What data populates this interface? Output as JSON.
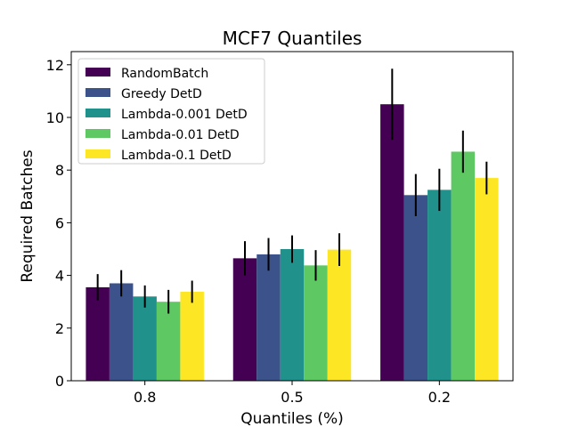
{
  "chart_data": {
    "type": "bar",
    "title": "MCF7 Quantiles",
    "xlabel": "Quantiles (%)",
    "ylabel": "Required Batches",
    "categories": [
      "0.8",
      "0.5",
      "0.2"
    ],
    "ylim": [
      0,
      12.5
    ],
    "yticks": [
      0,
      2,
      4,
      6,
      8,
      10,
      12
    ],
    "grid": false,
    "legend_position": "top-left",
    "series": [
      {
        "name": "RandomBatch",
        "color": "#440154",
        "values": [
          3.55,
          4.65,
          10.5
        ],
        "errors": [
          0.5,
          0.65,
          1.35
        ]
      },
      {
        "name": "Greedy DetD",
        "color": "#3b528b",
        "values": [
          3.7,
          4.8,
          7.05
        ],
        "errors": [
          0.5,
          0.62,
          0.8
        ]
      },
      {
        "name": "Lambda-0.001 DetD",
        "color": "#21918c",
        "values": [
          3.2,
          5.0,
          7.25
        ],
        "errors": [
          0.42,
          0.52,
          0.8
        ]
      },
      {
        "name": "Lambda-0.01 DetD",
        "color": "#5ec962",
        "values": [
          3.0,
          4.38,
          8.7
        ],
        "errors": [
          0.45,
          0.58,
          0.8
        ]
      },
      {
        "name": "Lambda-0.1 DetD",
        "color": "#fde725",
        "values": [
          3.38,
          4.98,
          7.7
        ],
        "errors": [
          0.42,
          0.62,
          0.62
        ]
      }
    ]
  }
}
